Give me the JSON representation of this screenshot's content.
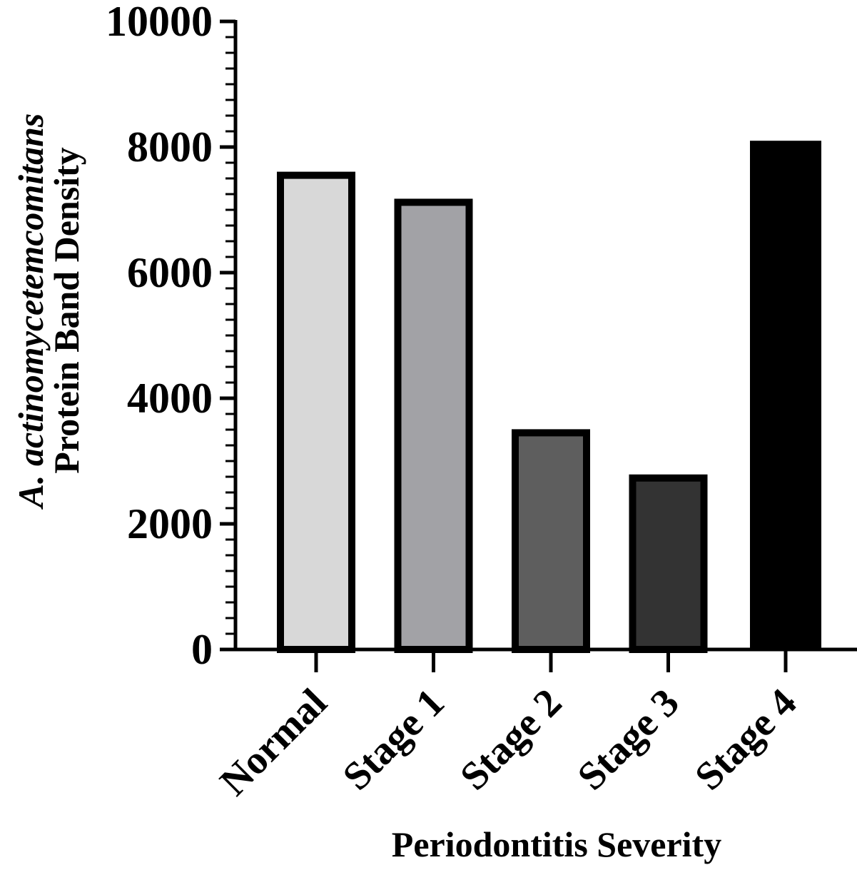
{
  "chart_data": {
    "type": "bar",
    "categories": [
      "Normal",
      "Stage 1",
      "Stage 2",
      "Stage 3",
      "Stage 4"
    ],
    "values": [
      7550,
      7120,
      3450,
      2730,
      8100
    ],
    "colors": [
      "#d8d8d8",
      "#a2a2a6",
      "#5e5e5e",
      "#333333",
      "#000000"
    ],
    "xlabel": "Periodontitis Severity",
    "ylabel_line1_italic": "A. actinomycetemcomitans",
    "ylabel_line2": "Protein Band Density",
    "ylim": [
      0,
      10000
    ],
    "yticks": [
      "0",
      "2000",
      "4000",
      "6000",
      "8000",
      "10000"
    ],
    "grid": false
  }
}
